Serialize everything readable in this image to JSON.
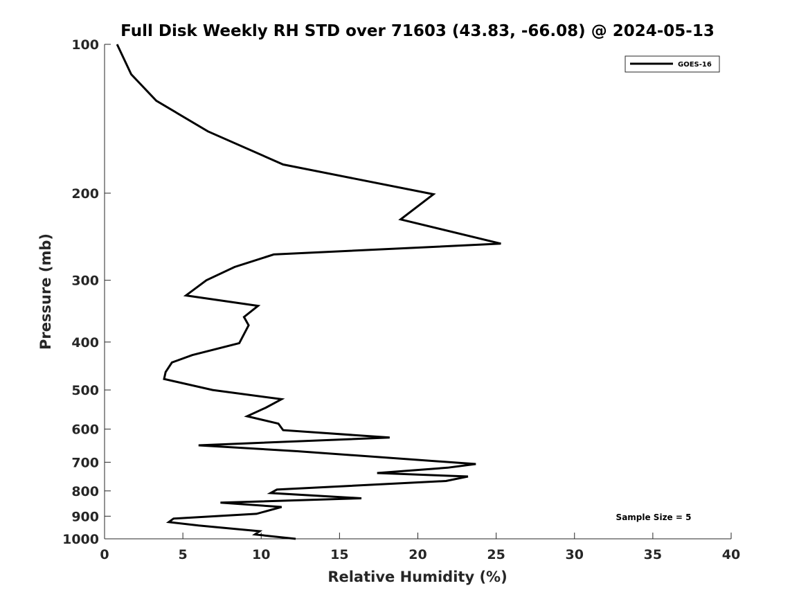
{
  "chart_data": {
    "type": "line",
    "title": "Full Disk Weekly RH STD over 71603 (43.83, -66.08) @ 2024-05-13",
    "xlabel": "Relative Humidity (%)",
    "ylabel": "Pressure (mb)",
    "xlim": [
      0,
      40
    ],
    "ylim": [
      100,
      1000
    ],
    "yscale": "log",
    "yreversed": true,
    "x_ticks": [
      0,
      5,
      10,
      15,
      20,
      25,
      30,
      35,
      40
    ],
    "y_ticks": [
      100,
      200,
      300,
      400,
      500,
      600,
      700,
      800,
      900,
      1000
    ],
    "grid": false,
    "legend_position": "top-right",
    "series": [
      {
        "name": "GOES-16",
        "color": "#000000",
        "points": [
          [
            0.8,
            100
          ],
          [
            1.7,
            115
          ],
          [
            3.3,
            130
          ],
          [
            6.6,
            150
          ],
          [
            11.4,
            175
          ],
          [
            21.0,
            201
          ],
          [
            18.9,
            226
          ],
          [
            25.3,
            253
          ],
          [
            10.8,
            266
          ],
          [
            8.3,
            282
          ],
          [
            6.5,
            300
          ],
          [
            5.2,
            322
          ],
          [
            9.8,
            338
          ],
          [
            8.9,
            356
          ],
          [
            9.2,
            370
          ],
          [
            8.6,
            402
          ],
          [
            5.6,
            425
          ],
          [
            4.3,
            440
          ],
          [
            3.9,
            460
          ],
          [
            3.8,
            475
          ],
          [
            6.9,
            500
          ],
          [
            11.3,
            522
          ],
          [
            10.3,
            543
          ],
          [
            9.1,
            565
          ],
          [
            11.1,
            585
          ],
          [
            11.4,
            603
          ],
          [
            18.2,
            624
          ],
          [
            6.0,
            647
          ],
          [
            12.3,
            665
          ],
          [
            23.7,
            706
          ],
          [
            21.9,
            718
          ],
          [
            17.4,
            736
          ],
          [
            23.2,
            748
          ],
          [
            21.8,
            764
          ],
          [
            11.0,
            795
          ],
          [
            10.6,
            808
          ],
          [
            16.4,
            828
          ],
          [
            7.4,
            845
          ],
          [
            11.3,
            862
          ],
          [
            9.7,
            890
          ],
          [
            4.4,
            910
          ],
          [
            4.1,
            925
          ],
          [
            6.0,
            940
          ],
          [
            9.9,
            965
          ],
          [
            9.6,
            980
          ],
          [
            12.2,
            1000
          ]
        ]
      }
    ],
    "annotation": "Sample Size = 5"
  }
}
